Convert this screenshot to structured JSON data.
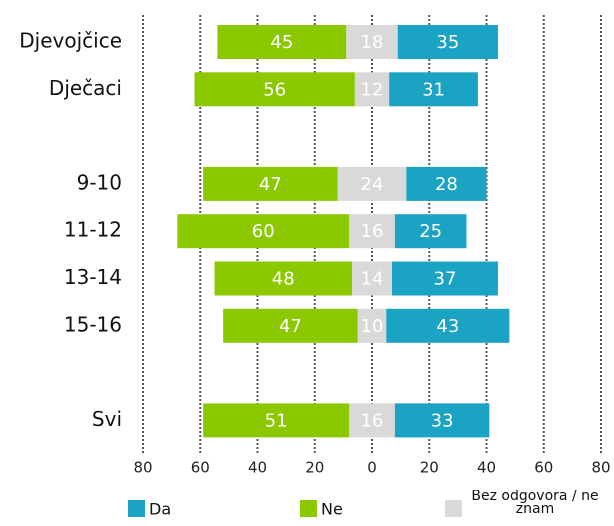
{
  "chart_data": {
    "type": "diverging_bar",
    "categories": [
      "Djevojčice",
      "Dječaci",
      null,
      "9-10",
      "11-12",
      "13-14",
      "15-16",
      null,
      "Svi"
    ],
    "series": [
      {
        "name": "Da",
        "color": "#1aa3c2",
        "values": [
          35,
          31,
          null,
          28,
          25,
          37,
          43,
          null,
          33
        ]
      },
      {
        "name": "Ne",
        "color": "#8cc800",
        "values": [
          45,
          56,
          null,
          47,
          60,
          48,
          47,
          null,
          51
        ]
      },
      {
        "name": "Bez odgovora / ne znam",
        "color": "#d9d9d9",
        "values": [
          18,
          12,
          null,
          24,
          16,
          14,
          10,
          null,
          16
        ]
      }
    ],
    "xlim": [
      -80,
      80
    ],
    "xticks": [
      {
        "value": -80,
        "label": "80"
      },
      {
        "value": -60,
        "label": "60"
      },
      {
        "value": -40,
        "label": "40"
      },
      {
        "value": -20,
        "label": "20"
      },
      0,
      20,
      40,
      60,
      80
    ],
    "grid": true
  }
}
